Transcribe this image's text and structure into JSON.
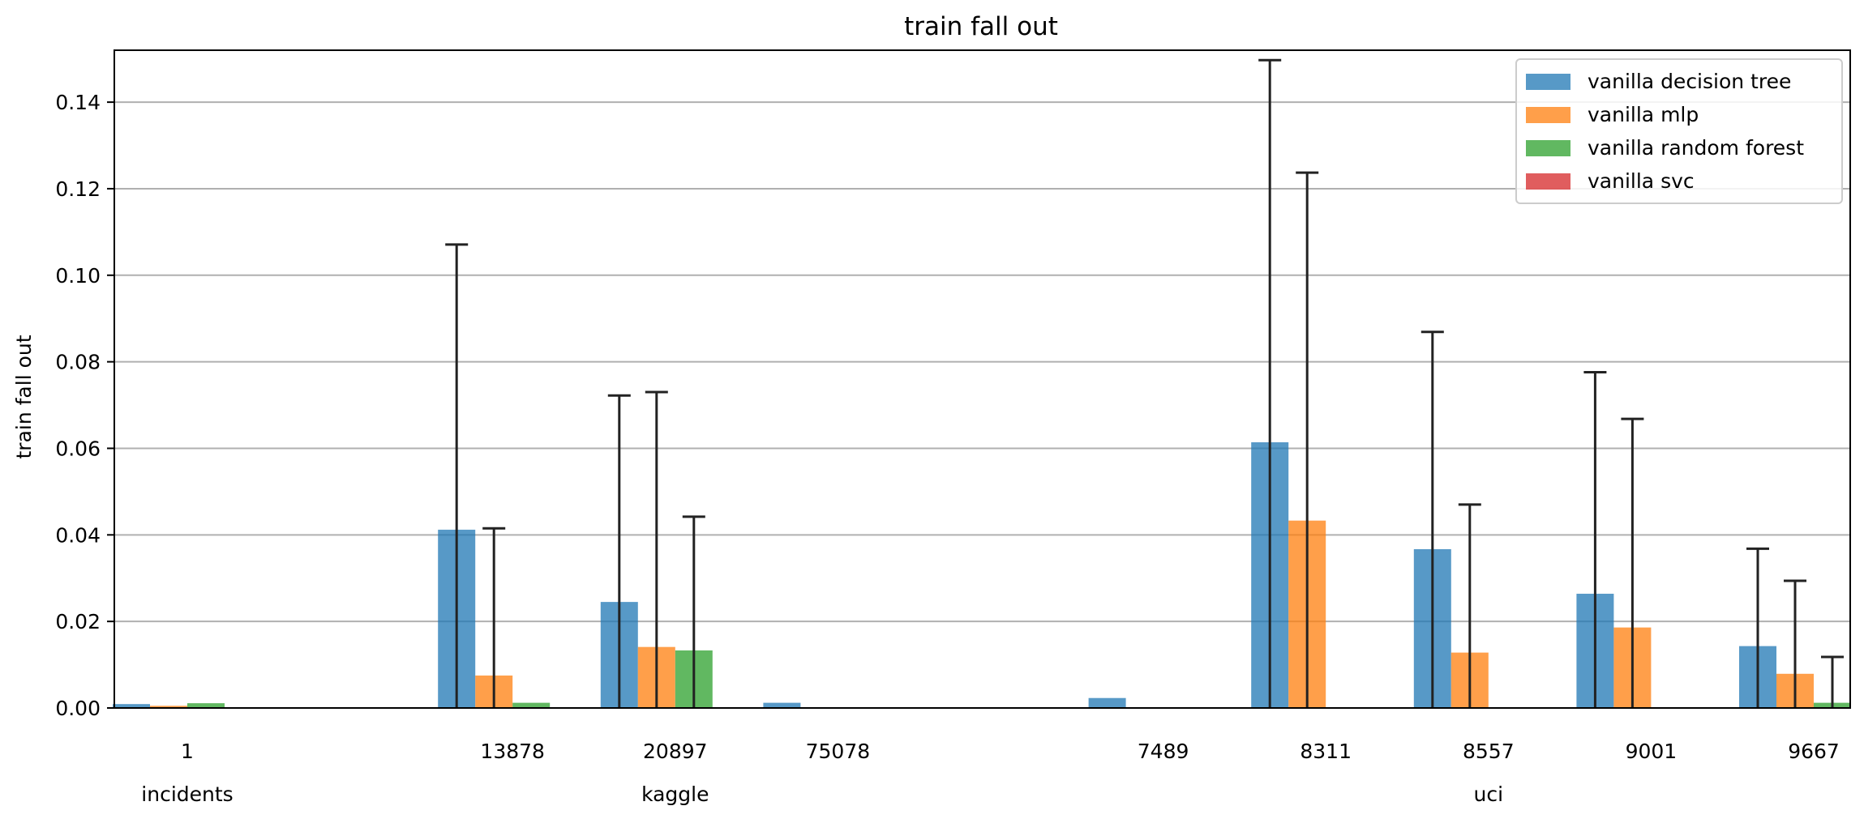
{
  "chart_data": {
    "type": "bar",
    "title": "train fall out",
    "xlabel": "",
    "ylabel": "train fall out",
    "ylim": [
      0,
      0.152
    ],
    "yticks": [
      "0.00",
      "0.02",
      "0.04",
      "0.06",
      "0.08",
      "0.10",
      "0.12",
      "0.14"
    ],
    "grid": "horizontal",
    "legend_position": "top-right",
    "categories": [
      "1",
      "13878",
      "20897",
      "75078",
      "7489",
      "8311",
      "8557",
      "9001",
      "9667"
    ],
    "groups": [
      {
        "label": "incidents",
        "categories": [
          "1"
        ]
      },
      {
        "label": "kaggle",
        "categories": [
          "13878",
          "20897",
          "75078"
        ]
      },
      {
        "label": "uci",
        "categories": [
          "7489",
          "8311",
          "8557",
          "9001",
          "9667"
        ]
      }
    ],
    "series": [
      {
        "name": "vanilla decision tree",
        "color": "#1f77b4",
        "values": [
          0.0009,
          0.0412,
          0.0245,
          0.0012,
          0.0023,
          0.0614,
          0.0367,
          0.0264,
          0.0143
        ],
        "errors": [
          null,
          0.0659,
          0.0477,
          null,
          null,
          0.0883,
          0.0502,
          0.0512,
          0.0225
        ]
      },
      {
        "name": "vanilla mlp",
        "color": "#ff7f0e",
        "values": [
          0.0005,
          0.0075,
          0.0141,
          null,
          null,
          0.0433,
          0.0128,
          0.0186,
          0.0079
        ],
        "errors": [
          null,
          0.034,
          0.0589,
          null,
          null,
          0.0804,
          0.0342,
          0.0482,
          0.0215
        ]
      },
      {
        "name": "vanilla random forest",
        "color": "#2ca02c",
        "values": [
          0.0011,
          0.0012,
          0.0133,
          null,
          null,
          null,
          null,
          null,
          0.0012
        ],
        "errors": [
          null,
          null,
          0.0309,
          null,
          null,
          null,
          null,
          null,
          0.0106
        ]
      },
      {
        "name": "vanilla svc",
        "color": "#d62728",
        "values": [
          null,
          null,
          null,
          null,
          null,
          null,
          null,
          null,
          null
        ],
        "errors": [
          null,
          null,
          null,
          null,
          null,
          null,
          null,
          null,
          null
        ]
      }
    ]
  }
}
